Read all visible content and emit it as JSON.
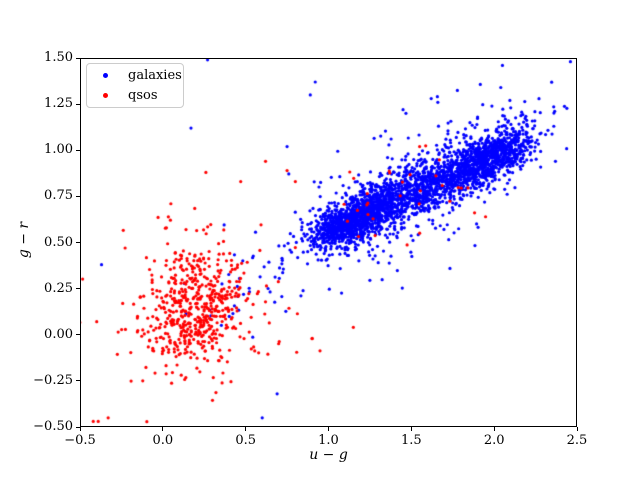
{
  "figure": {
    "background": "#ffffff",
    "axes_edge_color": "#000000"
  },
  "chart_data": {
    "type": "scatter",
    "title": "",
    "xlabel": "u − g",
    "ylabel": "g − r",
    "xlim": [
      -0.5,
      2.5
    ],
    "ylim": [
      -0.5,
      1.5
    ],
    "grid": false,
    "x_ticks": [
      -0.5,
      0.0,
      0.5,
      1.0,
      1.5,
      2.0,
      2.5
    ],
    "x_tick_labels": [
      "−0.5",
      "0.0",
      "0.5",
      "1.0",
      "1.5",
      "2.0",
      "2.5"
    ],
    "y_ticks": [
      -0.5,
      -0.25,
      0.0,
      0.25,
      0.5,
      0.75,
      1.0,
      1.25,
      1.5
    ],
    "y_tick_labels": [
      "−0.50",
      "−0.25",
      "0.00",
      "0.25",
      "0.50",
      "0.75",
      "1.00",
      "1.25",
      "1.50"
    ],
    "legend": {
      "position": "upper left",
      "entries": [
        {
          "label": "galaxies",
          "color": "#0000ff"
        },
        {
          "label": "qsos",
          "color": "#ff0000"
        }
      ]
    },
    "marker": {
      "shape": "circle",
      "radius_px": 1.6
    },
    "seed": 7,
    "series": [
      {
        "name": "galaxies",
        "color": "#0000ff",
        "description": "dense diagonal band from (0.9,0.5) to (2.2,1.1), y ≈ 0.17 + 0.4x",
        "clusters": [
          {
            "kind": "band",
            "n": 1000,
            "x_mean": 1.15,
            "x_sigma": 0.12,
            "slope": 0.4,
            "intercept": 0.17,
            "perp_sigma": 0.055
          },
          {
            "kind": "band",
            "n": 1200,
            "x_mean": 1.55,
            "x_sigma": 0.28,
            "slope": 0.4,
            "intercept": 0.17,
            "perp_sigma": 0.075
          },
          {
            "kind": "band",
            "n": 800,
            "x_mean": 1.97,
            "x_sigma": 0.14,
            "slope": 0.4,
            "intercept": 0.17,
            "perp_sigma": 0.065
          },
          {
            "kind": "band",
            "n": 280,
            "x_mean": 1.5,
            "x_sigma": 0.42,
            "slope": 0.4,
            "intercept": 0.17,
            "perp_sigma": 0.18
          },
          {
            "kind": "blob",
            "n": 25,
            "x_mean": 0.55,
            "x_sigma": 0.18,
            "y_mean": 0.2,
            "y_sigma": 0.13,
            "corr": 0.3
          }
        ],
        "outliers": [
          [
            0.27,
            1.49
          ],
          [
            0.92,
            1.37
          ],
          [
            0.89,
            1.3
          ],
          [
            1.45,
            1.22
          ],
          [
            1.62,
            1.28
          ],
          [
            1.66,
            1.26
          ],
          [
            2.05,
            1.46
          ],
          [
            2.04,
            1.34
          ],
          [
            2.1,
            1.23
          ],
          [
            1.9,
            1.18
          ],
          [
            2.36,
            1.13
          ],
          [
            2.37,
            0.94
          ],
          [
            -0.37,
            0.38
          ],
          [
            0.17,
            1.12
          ],
          [
            0.6,
            -0.45
          ],
          [
            0.69,
            -0.32
          ],
          [
            0.75,
            1.02
          ]
        ]
      },
      {
        "name": "qsos",
        "color": "#ff0000",
        "description": "round blob centered near (0.2,0.15) plus sparse points over the galaxy band",
        "clusters": [
          {
            "kind": "blob",
            "n": 500,
            "x_mean": 0.21,
            "x_sigma": 0.155,
            "y_mean": 0.15,
            "y_sigma": 0.15,
            "corr": 0.15
          },
          {
            "kind": "blob",
            "n": 100,
            "x_mean": 0.25,
            "x_sigma": 0.3,
            "y_mean": 0.17,
            "y_sigma": 0.26,
            "corr": 0.1
          },
          {
            "kind": "band",
            "n": 32,
            "x_mean": 1.45,
            "x_sigma": 0.28,
            "slope": 0.4,
            "intercept": 0.17,
            "perp_sigma": 0.14
          }
        ],
        "outliers": [
          [
            -0.42,
            -0.47
          ],
          [
            -0.39,
            -0.47
          ],
          [
            -0.33,
            -0.45
          ],
          [
            0.26,
            0.88
          ],
          [
            0.47,
            0.83
          ],
          [
            0.62,
            0.94
          ],
          [
            0.75,
            0.89
          ],
          [
            0.8,
            0.83
          ],
          [
            1.55,
            1.02
          ],
          [
            1.15,
            0.04
          ]
        ]
      }
    ]
  }
}
